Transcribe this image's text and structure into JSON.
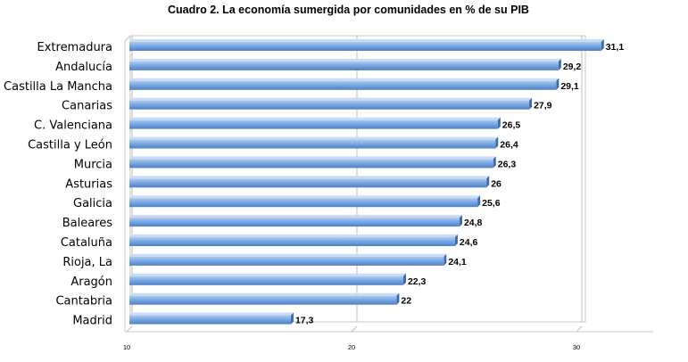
{
  "chart_data": {
    "type": "bar",
    "orientation": "horizontal",
    "title": "Cuadro 2. La economía sumergida por comunidades en % de su PIB",
    "categories": [
      "Extremadura",
      "Andalucía",
      "Castilla La Mancha",
      "Canarias",
      "C. Valenciana",
      "Castilla y León",
      "Murcia",
      "Asturias",
      "Galicia",
      "Baleares",
      "Cataluña",
      "Rioja, La",
      "Aragón",
      "Cantabria",
      "Madrid"
    ],
    "values": [
      31.1,
      29.2,
      29.1,
      27.9,
      26.5,
      26.4,
      26.3,
      26,
      25.6,
      24.8,
      24.6,
      24.1,
      22.3,
      22,
      17.3
    ],
    "value_labels": [
      "31,1",
      "29,2",
      "29,1",
      "27,9",
      "26,5",
      "26,4",
      "26,3",
      "26",
      "25,6",
      "24,8",
      "24,6",
      "24,1",
      "22,3",
      "22",
      "17,3"
    ],
    "xticks": [
      "10",
      "20",
      "30"
    ],
    "xlim": [
      10,
      33.5
    ],
    "xlabel": "",
    "ylabel": "",
    "grid": true,
    "bar_color": "#6f9fdc"
  }
}
